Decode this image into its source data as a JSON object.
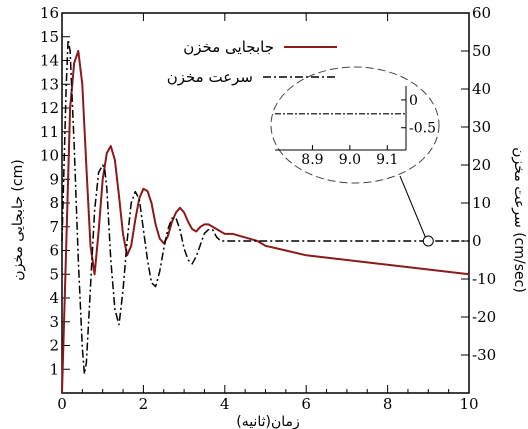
{
  "chart_data": {
    "type": "line",
    "xlabel": "زمان(ثانیه)",
    "ylabel_left": "جابجایی مخزن (cm)",
    "ylabel_right": "سرعت مخزن (cm/sec)",
    "xlim": [
      0,
      10
    ],
    "ylim_left": [
      0,
      16
    ],
    "ylim_right": [
      -40,
      60
    ],
    "x_ticks": [
      0,
      2,
      4,
      6,
      8,
      10
    ],
    "y_left_ticks": [
      1,
      2,
      3,
      4,
      5,
      6,
      7,
      8,
      9,
      10,
      11,
      12,
      13,
      14,
      15,
      16
    ],
    "y_right_ticks": [
      -30,
      -20,
      -10,
      0,
      10,
      20,
      30,
      40,
      50,
      60
    ],
    "grid": false,
    "legend_position": "top-center",
    "series": [
      {
        "name": "جابجایی مخزن",
        "axis": "left",
        "color": "#8b1a1a",
        "style": "solid",
        "x": [
          0,
          0.1,
          0.2,
          0.3,
          0.4,
          0.5,
          0.6,
          0.7,
          0.8,
          0.9,
          1.0,
          1.1,
          1.2,
          1.3,
          1.4,
          1.5,
          1.6,
          1.7,
          1.8,
          1.9,
          2.0,
          2.1,
          2.2,
          2.3,
          2.4,
          2.5,
          2.6,
          2.7,
          2.8,
          2.9,
          3.0,
          3.1,
          3.2,
          3.3,
          3.4,
          3.5,
          3.6,
          3.7,
          3.8,
          3.9,
          4.0,
          4.2,
          4.4,
          4.6,
          4.8,
          5.0,
          5.5,
          6.0,
          6.5,
          7.0,
          7.5,
          8.0,
          8.5,
          9.0,
          9.5,
          10.0
        ],
        "y": [
          0,
          6,
          12.0,
          13.9,
          14.4,
          13.0,
          9.5,
          6.2,
          5.0,
          6.8,
          9.0,
          10.1,
          10.4,
          9.8,
          8.3,
          6.7,
          5.8,
          6.2,
          7.3,
          8.2,
          8.6,
          8.5,
          8.0,
          7.1,
          6.5,
          6.3,
          6.6,
          7.2,
          7.6,
          7.8,
          7.6,
          7.2,
          6.9,
          6.8,
          7.0,
          7.1,
          7.1,
          7.0,
          6.9,
          6.8,
          6.7,
          6.7,
          6.6,
          6.5,
          6.4,
          6.2,
          6.0,
          5.8,
          5.7,
          5.6,
          5.5,
          5.4,
          5.3,
          5.2,
          5.1,
          5.0
        ]
      },
      {
        "name": "سرعت مخزن",
        "axis": "right",
        "color": "#000000",
        "style": "dash-dot",
        "x": [
          0,
          0.1,
          0.15,
          0.2,
          0.3,
          0.4,
          0.5,
          0.55,
          0.6,
          0.7,
          0.8,
          0.9,
          1.0,
          1.05,
          1.1,
          1.2,
          1.3,
          1.4,
          1.5,
          1.6,
          1.7,
          1.8,
          1.9,
          2.0,
          2.1,
          2.2,
          2.3,
          2.4,
          2.5,
          2.6,
          2.7,
          2.8,
          2.9,
          3.0,
          3.1,
          3.2,
          3.3,
          3.4,
          3.5,
          3.6,
          3.7,
          3.8,
          3.9,
          4.0,
          4.5,
          5.0,
          6.0,
          7.0,
          8.0,
          9.0,
          10.0
        ],
        "y": [
          0,
          40,
          53,
          50,
          25,
          -5,
          -28,
          -35,
          -32,
          -12,
          8,
          18,
          20,
          19,
          14,
          -5,
          -18,
          -22,
          -13,
          0,
          10,
          13,
          11,
          3,
          -5,
          -11,
          -12,
          -8,
          -2,
          3,
          6,
          6,
          3,
          -2,
          -5,
          -6,
          -4,
          -1,
          2,
          3,
          3,
          1,
          0,
          0,
          0,
          0,
          0,
          0,
          0,
          0,
          0
        ]
      }
    ],
    "inset": {
      "xlim": [
        8.8,
        9.15
      ],
      "ylim": [
        -0.9,
        0.25
      ],
      "x_ticks": [
        "8.9",
        "9.0",
        "9.1"
      ],
      "y_ticks": [
        "0",
        "-0.5"
      ],
      "series": [
        {
          "x": [
            8.8,
            9.15
          ],
          "y": [
            -0.25,
            -0.25
          ]
        }
      ]
    }
  }
}
